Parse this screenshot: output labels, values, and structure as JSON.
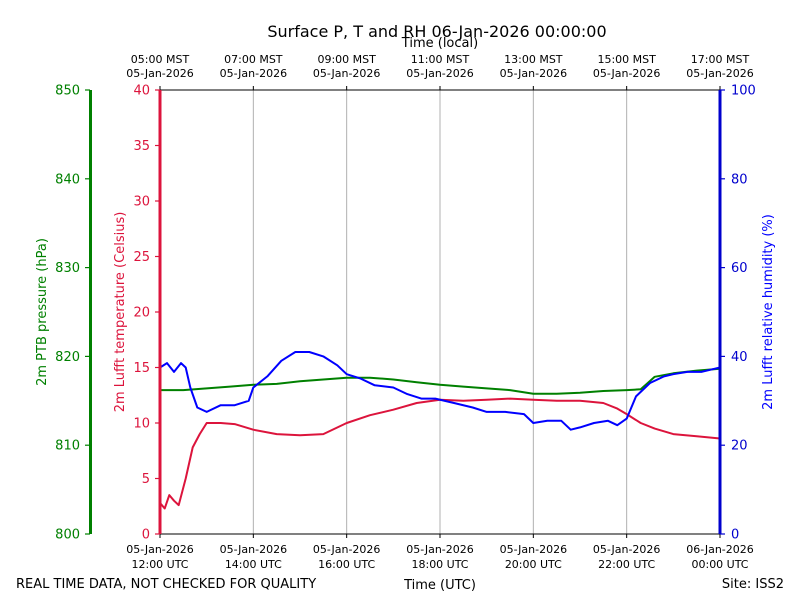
{
  "chart_data": {
    "type": "line",
    "title": "Surface P, T and RH 06-Jan-2026 00:00:00",
    "top_axis_label": "Time (local)",
    "top_ticks": [
      {
        "hour": 12,
        "line1": "05:00 MST",
        "line2": "05-Jan-2026"
      },
      {
        "hour": 14,
        "line1": "07:00 MST",
        "line2": "05-Jan-2026"
      },
      {
        "hour": 16,
        "line1": "09:00 MST",
        "line2": "05-Jan-2026"
      },
      {
        "hour": 18,
        "line1": "11:00 MST",
        "line2": "05-Jan-2026"
      },
      {
        "hour": 20,
        "line1": "13:00 MST",
        "line2": "05-Jan-2026"
      },
      {
        "hour": 22,
        "line1": "15:00 MST",
        "line2": "05-Jan-2026"
      },
      {
        "hour": 24,
        "line1": "17:00 MST",
        "line2": "05-Jan-2026"
      }
    ],
    "bottom_axis_label": "Time (UTC)",
    "bottom_ticks": [
      {
        "hour": 12,
        "line1": "05-Jan-2026",
        "line2": "12:00 UTC"
      },
      {
        "hour": 14,
        "line1": "05-Jan-2026",
        "line2": "14:00 UTC"
      },
      {
        "hour": 16,
        "line1": "05-Jan-2026",
        "line2": "16:00 UTC"
      },
      {
        "hour": 18,
        "line1": "05-Jan-2026",
        "line2": "18:00 UTC"
      },
      {
        "hour": 20,
        "line1": "05-Jan-2026",
        "line2": "20:00 UTC"
      },
      {
        "hour": 22,
        "line1": "05-Jan-2026",
        "line2": "22:00 UTC"
      },
      {
        "hour": 24,
        "line1": "06-Jan-2026",
        "line2": "00:00 UTC"
      }
    ],
    "x_range_hours": [
      12,
      24
    ],
    "grid": "vertical",
    "axes": {
      "pressure": {
        "label": "2m PTB pressure (hPa)",
        "range": [
          800,
          850
        ],
        "ticks": [
          800,
          810,
          820,
          830,
          840,
          850
        ],
        "color": "#008000"
      },
      "temperature": {
        "label": "2m Lufft temperature (Celsius)",
        "range": [
          0,
          40
        ],
        "ticks": [
          0,
          5,
          10,
          15,
          20,
          25,
          30,
          35,
          40
        ],
        "color": "#dc143c"
      },
      "humidity": {
        "label": "2m Lufft relative humidity (%)",
        "range": [
          0,
          100
        ],
        "ticks": [
          0,
          20,
          40,
          60,
          80,
          100
        ],
        "color": "#0000cd"
      }
    },
    "series": [
      {
        "name": "Pressure (hPa)",
        "axis": "pressure",
        "color": "#008000",
        "x": [
          12.0,
          12.5,
          13.0,
          13.5,
          14.0,
          14.5,
          15.0,
          15.5,
          16.0,
          16.5,
          17.0,
          17.5,
          18.0,
          18.5,
          19.0,
          19.5,
          20.0,
          20.5,
          21.0,
          21.5,
          22.0,
          22.3,
          22.6,
          23.0,
          23.5,
          24.0
        ],
        "y": [
          816.2,
          816.2,
          816.4,
          816.6,
          816.8,
          816.9,
          817.2,
          817.4,
          817.6,
          817.6,
          817.4,
          817.1,
          816.8,
          816.6,
          816.4,
          816.2,
          815.8,
          815.8,
          815.9,
          816.1,
          816.2,
          816.3,
          817.7,
          818.1,
          818.4,
          818.6
        ]
      },
      {
        "name": "Temperature (Celsius)",
        "axis": "temperature",
        "color": "#dc143c",
        "x": [
          12.0,
          12.1,
          12.2,
          12.3,
          12.4,
          12.55,
          12.7,
          12.85,
          13.0,
          13.3,
          13.6,
          14.0,
          14.5,
          15.0,
          15.5,
          16.0,
          16.5,
          17.0,
          17.5,
          18.0,
          18.5,
          19.0,
          19.5,
          20.0,
          20.5,
          21.0,
          21.5,
          21.8,
          22.0,
          22.3,
          22.6,
          23.0,
          23.5,
          24.0
        ],
        "y": [
          2.8,
          2.3,
          3.5,
          3.0,
          2.6,
          5.0,
          7.8,
          9.0,
          10.0,
          10.0,
          9.9,
          9.4,
          9.0,
          8.9,
          9.0,
          10.0,
          10.7,
          11.2,
          11.8,
          12.1,
          12.0,
          12.1,
          12.2,
          12.1,
          12.0,
          12.0,
          11.8,
          11.3,
          10.8,
          10.0,
          9.5,
          9.0,
          8.8,
          8.6
        ]
      },
      {
        "name": "Relative humidity (%)",
        "axis": "humidity",
        "color": "#0000ff",
        "x": [
          12.0,
          12.15,
          12.3,
          12.45,
          12.55,
          12.65,
          12.8,
          13.0,
          13.3,
          13.6,
          13.9,
          14.0,
          14.3,
          14.6,
          14.9,
          15.2,
          15.5,
          15.8,
          16.0,
          16.3,
          16.6,
          17.0,
          17.3,
          17.6,
          17.9,
          18.3,
          18.7,
          19.0,
          19.4,
          19.8,
          20.0,
          20.3,
          20.6,
          20.8,
          21.0,
          21.3,
          21.6,
          21.8,
          22.0,
          22.2,
          22.5,
          22.8,
          23.0,
          23.3,
          23.6,
          23.8,
          24.0
        ],
        "y": [
          37.5,
          38.5,
          36.5,
          38.5,
          37.5,
          33.0,
          28.5,
          27.5,
          29.0,
          29.0,
          30.0,
          33.0,
          35.5,
          39.0,
          41.0,
          41.0,
          40.0,
          38.0,
          36.0,
          35.0,
          33.5,
          33.0,
          31.5,
          30.5,
          30.5,
          29.5,
          28.5,
          27.5,
          27.5,
          27.0,
          25.0,
          25.5,
          25.5,
          23.5,
          24.0,
          25.0,
          25.5,
          24.5,
          26.0,
          31.0,
          34.0,
          35.5,
          36.0,
          36.5,
          36.5,
          37.0,
          37.5
        ]
      }
    ]
  },
  "footer": {
    "left": "REAL TIME DATA, NOT CHECKED FOR QUALITY",
    "right": "Site: ISS2"
  }
}
